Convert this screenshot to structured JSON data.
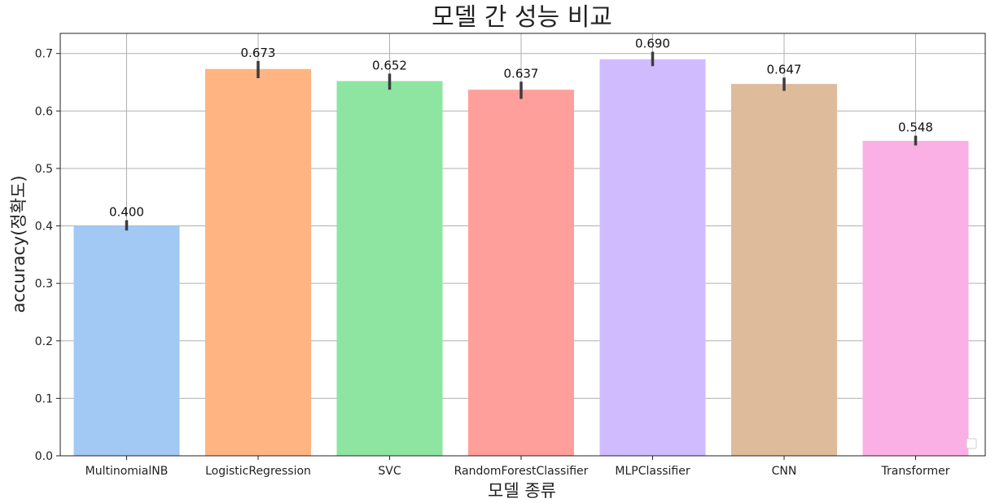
{
  "chart_data": {
    "type": "bar",
    "title": "모델 간 성능 비교",
    "xlabel": "모델 종류",
    "ylabel": "accuracy(정확도)",
    "ylim": [
      0,
      0.735
    ],
    "yticks": [
      0.0,
      0.1,
      0.2,
      0.3,
      0.4,
      0.5,
      0.6,
      0.7
    ],
    "ytick_labels": [
      "0.0",
      "0.1",
      "0.2",
      "0.3",
      "0.4",
      "0.5",
      "0.6",
      "0.7"
    ],
    "grid": true,
    "categories": [
      "MultinomialNB",
      "LogisticRegression",
      "SVC",
      "RandomForestClassifier",
      "MLPClassifier",
      "CNN",
      "Transformer"
    ],
    "values": [
      0.4,
      0.673,
      0.652,
      0.637,
      0.69,
      0.647,
      0.548
    ],
    "value_labels": [
      "0.400",
      "0.673",
      "0.652",
      "0.637",
      "0.690",
      "0.647",
      "0.548"
    ],
    "error_low": [
      0.392,
      0.657,
      0.637,
      0.621,
      0.678,
      0.635,
      0.54
    ],
    "error_high": [
      0.41,
      0.687,
      0.665,
      0.651,
      0.703,
      0.658,
      0.557
    ],
    "colors": [
      "#a1c9f4",
      "#ffb482",
      "#8de5a1",
      "#ff9f9b",
      "#d0bbff",
      "#debb9b",
      "#fab0e4"
    ],
    "legend": "lower-right, empty"
  }
}
